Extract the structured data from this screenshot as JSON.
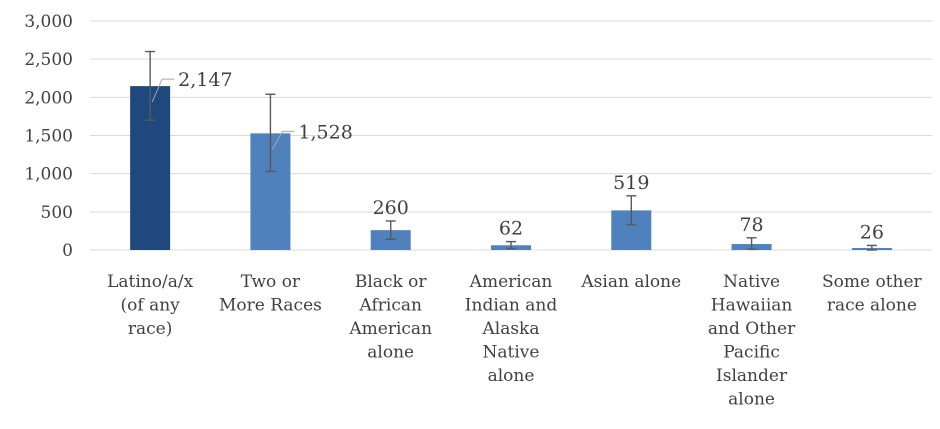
{
  "chart_data": {
    "type": "bar",
    "title": "",
    "xlabel": "",
    "ylabel": "",
    "ylim": [
      0,
      3000
    ],
    "yticks": [
      0,
      500,
      1000,
      1500,
      2000,
      2500,
      3000
    ],
    "ytick_labels": [
      "0",
      "500",
      "1,000",
      "1,500",
      "2,000",
      "2,500",
      "3,000"
    ],
    "grid": true,
    "legend": "none",
    "categories": [
      "Latino/a/x (of any race)",
      "Two or More Races",
      "Black or African American alone",
      "American Indian and Alaska Native alone",
      "Asian alone",
      "Native Hawaiian and Other Pacific Islander alone",
      "Some other race alone"
    ],
    "category_lines": [
      [
        "Latino/a/x",
        "(of any",
        "race)"
      ],
      [
        "Two or",
        "More Races"
      ],
      [
        "Black or",
        "African",
        "American",
        "alone"
      ],
      [
        "American",
        "Indian and",
        "Alaska",
        "Native",
        "alone"
      ],
      [
        "Asian alone"
      ],
      [
        "Native",
        "Hawaiian",
        "and Other",
        "Pacific",
        "Islander",
        "alone"
      ],
      [
        "Some other",
        "race alone"
      ]
    ],
    "values": [
      2147,
      1528,
      260,
      62,
      519,
      78,
      26
    ],
    "value_labels": [
      "2,147",
      "1,528",
      "260",
      "62",
      "519",
      "78",
      "26"
    ],
    "error_low": [
      1700,
      1030,
      140,
      20,
      330,
      10,
      0
    ],
    "error_high": [
      2600,
      2040,
      380,
      110,
      710,
      160,
      60
    ],
    "colors": [
      "#1f497d",
      "#4f81bd",
      "#4f81bd",
      "#4f81bd",
      "#4f81bd",
      "#4f81bd",
      "#4f81bd"
    ],
    "highlight_color": "#1f497d",
    "bar_color": "#4f81bd"
  }
}
